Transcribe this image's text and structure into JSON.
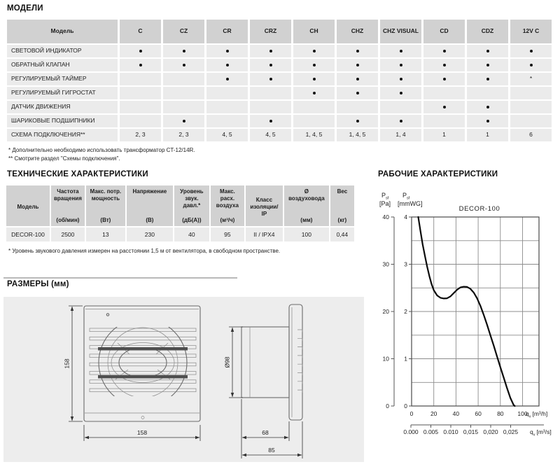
{
  "models": {
    "title": "МОДЕЛИ",
    "col_header": "Модель",
    "columns": [
      "C",
      "CZ",
      "CR",
      "CRZ",
      "CH",
      "CHZ",
      "CHZ VISUAL",
      "CD",
      "CDZ",
      "12V C"
    ],
    "rows": [
      {
        "label": "СВЕТОВОЙ ИНДИКАТОР",
        "cells": [
          "•",
          "•",
          "•",
          "•",
          "•",
          "•",
          "•",
          "•",
          "•",
          "•"
        ]
      },
      {
        "label": "ОБРАТНЫЙ КЛАПАН",
        "cells": [
          "•",
          "•",
          "•",
          "•",
          "•",
          "•",
          "•",
          "•",
          "•",
          "•"
        ]
      },
      {
        "label": "РЕГУЛИРУЕМЫЙ ТАЙМЕР",
        "cells": [
          "",
          "",
          "•",
          "•",
          "•",
          "•",
          "•",
          "•",
          "•",
          "*"
        ]
      },
      {
        "label": "РЕГУЛИРУЕМЫЙ ГИГРОСТАТ",
        "cells": [
          "",
          "",
          "",
          "",
          "•",
          "•",
          "•",
          "",
          "",
          ""
        ]
      },
      {
        "label": "ДАТЧИК ДВИЖЕНИЯ",
        "cells": [
          "",
          "",
          "",
          "",
          "",
          "",
          "",
          "•",
          "•",
          ""
        ]
      },
      {
        "label": "ШАРИКОВЫЕ ПОДШИПНИКИ",
        "cells": [
          "",
          "•",
          "",
          "•",
          "",
          "•",
          "•",
          "",
          "•",
          ""
        ]
      },
      {
        "label": "СХЕМА ПОДКЛЮЧЕНИЯ**",
        "cells": [
          "2, 3",
          "2, 3",
          "4, 5",
          "4, 5",
          "1, 4, 5",
          "1, 4, 5",
          "1, 4",
          "1",
          "1",
          "6"
        ]
      }
    ],
    "footnotes": [
      "* Дополнительно необходимо использовать трансформатор CT-12/14R.",
      "** Смотрите раздел \"Схемы подключения\"."
    ]
  },
  "tech": {
    "title": "ТЕХНИЧЕСКИЕ ХАРАКТЕРИСТИКИ",
    "columns": [
      {
        "title": "Модель",
        "unit": ""
      },
      {
        "title": "Частота вращения",
        "unit": "(об/мин)"
      },
      {
        "title": "Макс. потр. мощность",
        "unit": "(Вт)"
      },
      {
        "title": "Напряжение",
        "unit": "(В)"
      },
      {
        "title": "Уровень звук. давл.*",
        "unit": "(дБ(А))"
      },
      {
        "title": "Макс. расх. воздуха",
        "unit": "(м³/ч)"
      },
      {
        "title": "Класс изоляции/ IP",
        "unit": ""
      },
      {
        "title": "Ø воздуховода",
        "unit": "(мм)"
      },
      {
        "title": "Вес",
        "unit": "(кг)"
      }
    ],
    "row": [
      "DECOR-100",
      "2500",
      "13",
      "230",
      "40",
      "95",
      "II / IPX4",
      "100",
      "0,44"
    ],
    "footnote": "* Уровень звукового давления измерен на расстоянии 1,5 м от вентилятора, в свободном пространстве."
  },
  "dimensions": {
    "title": "РАЗМЕРЫ (мм)",
    "front": {
      "height": "158",
      "width": "158"
    },
    "side": {
      "diameter": "Ø98",
      "duct_depth": "68",
      "total_depth": "85"
    }
  },
  "performance": {
    "title": "РАБОЧИЕ ХАРАКТЕРИСТИКИ",
    "chart_data": {
      "type": "line",
      "title": "DECOR-100",
      "y_axis_pa": {
        "var": "P",
        "var_sub": "sf",
        "unit": "[Pa]",
        "ticks": [
          0,
          10,
          20,
          30,
          40
        ],
        "range": [
          0,
          40
        ]
      },
      "y_axis_mmwg": {
        "var": "P",
        "var_sub": "sf",
        "unit": "[mmWG]",
        "ticks": [
          0,
          1,
          2,
          3,
          4
        ],
        "range": [
          0,
          4
        ]
      },
      "x_axis": {
        "var": "q",
        "var_sub": "v",
        "unit": "[m³/h]",
        "ticks": [
          0,
          20,
          40,
          60,
          80,
          100
        ],
        "range": [
          0,
          115
        ]
      },
      "x_axis_secondary": {
        "var": "q",
        "var_sub": "v",
        "unit": "[m³/s]",
        "ticks": [
          "0.000",
          "0.005",
          "0.010",
          "0,015",
          "0,020",
          "0,025"
        ]
      },
      "grid_step_mmwg": 0.5,
      "grid_step_m3h": 20,
      "curve_mmwg": [
        [
          6,
          4.0
        ],
        [
          8,
          3.7
        ],
        [
          10,
          3.42
        ],
        [
          12,
          3.18
        ],
        [
          14,
          2.95
        ],
        [
          16,
          2.75
        ],
        [
          18,
          2.58
        ],
        [
          20,
          2.45
        ],
        [
          23,
          2.34
        ],
        [
          26,
          2.29
        ],
        [
          29,
          2.275
        ],
        [
          32,
          2.28
        ],
        [
          35,
          2.32
        ],
        [
          38,
          2.39
        ],
        [
          41,
          2.46
        ],
        [
          44,
          2.51
        ],
        [
          47,
          2.525
        ],
        [
          50,
          2.52
        ],
        [
          53,
          2.48
        ],
        [
          56,
          2.4
        ],
        [
          59,
          2.28
        ],
        [
          62,
          2.12
        ],
        [
          65,
          1.93
        ],
        [
          68,
          1.72
        ],
        [
          71,
          1.5
        ],
        [
          74,
          1.28
        ],
        [
          77,
          1.05
        ],
        [
          80,
          0.82
        ],
        [
          83,
          0.6
        ],
        [
          86,
          0.38
        ],
        [
          89,
          0.17
        ],
        [
          92,
          0.02
        ],
        [
          93,
          0
        ]
      ]
    }
  }
}
